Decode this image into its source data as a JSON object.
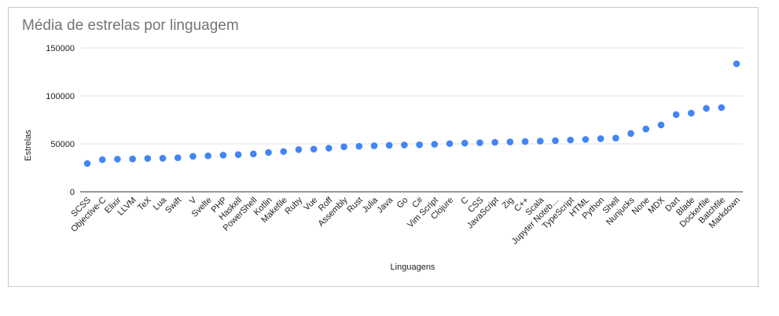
{
  "chart_data": {
    "type": "scatter",
    "title": "Média de estrelas por linguagem",
    "xlabel": "Linguagens",
    "ylabel": "Estrelas",
    "ylim": [
      0,
      150000
    ],
    "yticks": [
      "150000",
      "100000",
      "50000",
      "0"
    ],
    "grid": true,
    "point_color": "#4285f4",
    "categories": [
      "SCSS",
      "Objective-C",
      "Elixir",
      "LLVM",
      "TeX",
      "Lua",
      "Swift",
      "V",
      "Svelte",
      "PHP",
      "Haskell",
      "PowerShell",
      "Kotlin",
      "Makefile",
      "Ruby",
      "Vue",
      "Roff",
      "Assembly",
      "Rust",
      "Julia",
      "Java",
      "Go",
      "C#",
      "Vim Script",
      "Clojure",
      "C",
      "CSS",
      "JavaScript",
      "Zig",
      "C++",
      "Scala",
      "Jupyter Noteb…",
      "TypeScript",
      "HTML",
      "Python",
      "Shell",
      "Nunjucks",
      "None",
      "MDX",
      "Dart",
      "Blade",
      "Dockerfile",
      "Batchfile",
      "Markdown"
    ],
    "values": [
      29500,
      33500,
      34000,
      34300,
      34800,
      35000,
      35500,
      37000,
      37500,
      38200,
      38800,
      39500,
      41000,
      42000,
      44000,
      44500,
      45500,
      47000,
      47500,
      48000,
      48500,
      48800,
      49000,
      49500,
      50200,
      50800,
      51200,
      51600,
      52000,
      52400,
      52800,
      53300,
      54000,
      54600,
      55400,
      56000,
      60800,
      65500,
      69700,
      80500,
      82000,
      87000,
      87800,
      133500
    ]
  }
}
